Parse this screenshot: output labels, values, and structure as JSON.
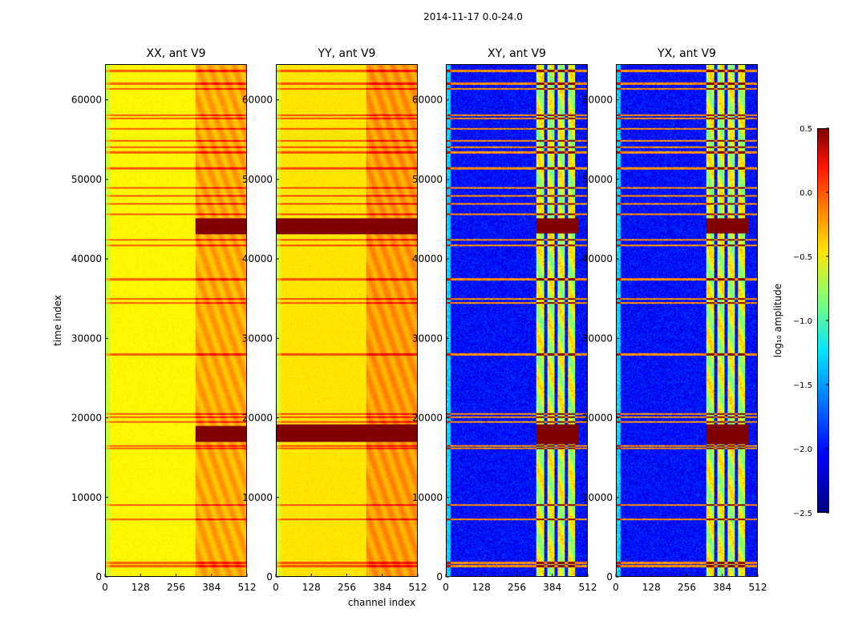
{
  "figure": {
    "suptitle": "2014-11-17 0.0-24.0",
    "xlabel": "channel index",
    "ylabel": "time index"
  },
  "chart_data": [
    {
      "type": "heatmap",
      "title": "XX, ant V9",
      "x_range": [
        0,
        512
      ],
      "y_range": [
        0,
        64500
      ],
      "x_ticks": [
        "0",
        "128",
        "256",
        "384",
        "512"
      ],
      "y_ticks": [
        "0",
        "10000",
        "20000",
        "30000",
        "40000",
        "50000",
        "60000"
      ],
      "show_y_ticks": true,
      "baseline_log10_amplitude": -0.6,
      "bands_channels": [
        [
          326,
          512
        ]
      ],
      "flag_times": [
        [
          17000,
          19000
        ],
        [
          43200,
          45200
        ]
      ],
      "flag_channels": [
        [
          326,
          512
        ]
      ]
    },
    {
      "type": "heatmap",
      "title": "YY, ant V9",
      "x_range": [
        0,
        512
      ],
      "y_range": [
        0,
        64500
      ],
      "x_ticks": [
        "0",
        "128",
        "256",
        "384",
        "512"
      ],
      "y_ticks": [
        "0",
        "10000",
        "20000",
        "30000",
        "40000",
        "50000",
        "60000"
      ],
      "show_y_ticks": true,
      "baseline_log10_amplitude": -0.55,
      "bands_channels": [
        [
          326,
          512
        ]
      ],
      "flag_times": [
        [
          17000,
          19200
        ],
        [
          43200,
          45200
        ]
      ],
      "flag_channels": [
        [
          0,
          512
        ]
      ]
    },
    {
      "type": "heatmap",
      "title": "XY, ant V9",
      "x_range": [
        0,
        512
      ],
      "y_range": [
        0,
        64500
      ],
      "x_ticks": [
        "0",
        "128",
        "256",
        "384",
        "512"
      ],
      "y_ticks": [
        "0",
        "10000",
        "20000",
        "30000",
        "40000",
        "50000",
        "60000"
      ],
      "show_y_ticks": true,
      "baseline_log10_amplitude": -2.1,
      "bands_channels": [
        [
          326,
          354
        ],
        [
          366,
          392
        ],
        [
          404,
          430
        ],
        [
          442,
          468
        ]
      ],
      "flag_times": [
        [
          16700,
          19200
        ],
        [
          43300,
          45200
        ]
      ],
      "flag_channels": [
        [
          326,
          480
        ]
      ]
    },
    {
      "type": "heatmap",
      "title": "YX, ant V9",
      "x_range": [
        0,
        512
      ],
      "y_range": [
        0,
        64500
      ],
      "x_ticks": [
        "0",
        "128",
        "256",
        "384",
        "512"
      ],
      "y_ticks": [
        "0",
        "10000",
        "20000",
        "30000",
        "40000",
        "50000",
        "60000"
      ],
      "show_y_ticks": true,
      "baseline_log10_amplitude": -2.1,
      "bands_channels": [
        [
          326,
          354
        ],
        [
          366,
          392
        ],
        [
          404,
          430
        ],
        [
          442,
          468
        ]
      ],
      "flag_times": [
        [
          16700,
          19200
        ],
        [
          43300,
          45200
        ]
      ],
      "flag_channels": [
        [
          326,
          480
        ]
      ]
    }
  ],
  "colorbar": {
    "label": "log₁₀ amplitude",
    "range": [
      -2.5,
      0.5
    ],
    "ticks": [
      "0.5",
      "0.0",
      "−0.5",
      "−1.0",
      "−1.5",
      "−2.0",
      "−2.5"
    ],
    "colormap": "jet"
  },
  "rfi_lines_time": [
    1300,
    1700,
    7200,
    9000,
    16200,
    16500,
    19500,
    20100,
    20500,
    28000,
    34500,
    35000,
    37500,
    41800,
    42500,
    45700,
    47000,
    48000,
    49000,
    51500,
    53500,
    54200,
    55000,
    56500,
    57800,
    58200,
    61500,
    62200,
    63800
  ]
}
